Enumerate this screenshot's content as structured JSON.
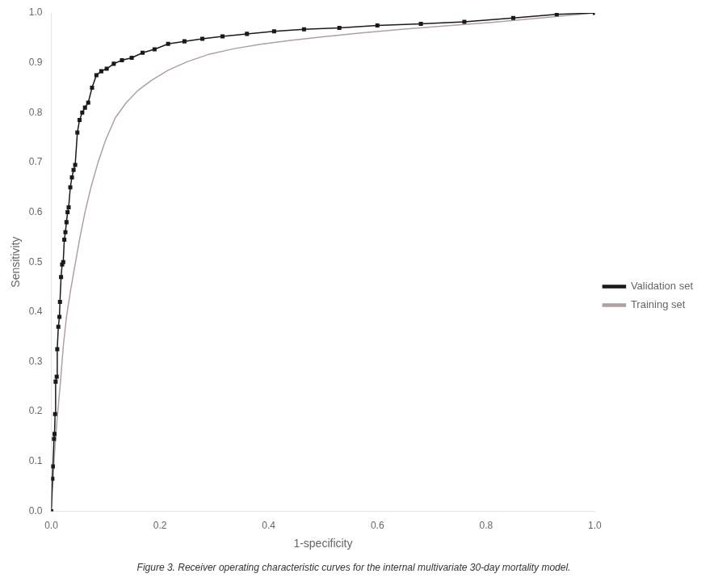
{
  "chart_data": {
    "type": "line",
    "xlabel": "1-specificity",
    "ylabel": "Sensitivity",
    "caption": "Figure 3. Receiver operating characteristic curves for the internal multivariate 30-day mortality model.",
    "xlim": [
      0.0,
      1.0
    ],
    "ylim": [
      0.0,
      1.0
    ],
    "xticks": [
      {
        "value": 0,
        "label": "0.0"
      },
      0.2,
      0.4,
      0.6,
      0.8,
      {
        "value": 1,
        "label": "1.0"
      }
    ],
    "yticks": [
      {
        "value": 0,
        "label": "0.0"
      },
      0.1,
      0.2,
      0.3,
      0.4,
      0.5,
      0.6,
      0.7,
      0.8,
      0.9,
      {
        "value": 1,
        "label": "1.0"
      }
    ],
    "grid": false,
    "legend": "right",
    "series": [
      {
        "name": "Validation set",
        "color": "#1a1a1a",
        "marker": "square",
        "line_style": "solid",
        "x": [
          0.0,
          0.002,
          0.003,
          0.005,
          0.006,
          0.007,
          0.008,
          0.01,
          0.011,
          0.013,
          0.015,
          0.016,
          0.018,
          0.02,
          0.022,
          0.024,
          0.026,
          0.028,
          0.03,
          0.032,
          0.035,
          0.038,
          0.041,
          0.044,
          0.048,
          0.052,
          0.057,
          0.062,
          0.068,
          0.075,
          0.083,
          0.092,
          0.102,
          0.115,
          0.13,
          0.148,
          0.168,
          0.19,
          0.215,
          0.245,
          0.278,
          0.315,
          0.36,
          0.41,
          0.465,
          0.53,
          0.6,
          0.68,
          0.76,
          0.85,
          0.93,
          1.0
        ],
        "values": [
          0.0,
          0.065,
          0.09,
          0.145,
          0.155,
          0.195,
          0.26,
          0.27,
          0.325,
          0.37,
          0.39,
          0.42,
          0.47,
          0.495,
          0.5,
          0.545,
          0.56,
          0.58,
          0.6,
          0.61,
          0.65,
          0.67,
          0.685,
          0.695,
          0.76,
          0.785,
          0.8,
          0.81,
          0.82,
          0.85,
          0.875,
          0.883,
          0.888,
          0.898,
          0.905,
          0.91,
          0.92,
          0.927,
          0.938,
          0.943,
          0.948,
          0.953,
          0.958,
          0.963,
          0.967,
          0.97,
          0.975,
          0.978,
          0.982,
          0.99,
          0.997,
          1.0
        ]
      },
      {
        "name": "Training set",
        "color": "#b0a0a0",
        "marker": "none",
        "line_style": "solid",
        "x": [
          0.0,
          0.004,
          0.008,
          0.012,
          0.017,
          0.022,
          0.028,
          0.035,
          0.043,
          0.052,
          0.062,
          0.073,
          0.086,
          0.1,
          0.118,
          0.138,
          0.16,
          0.185,
          0.215,
          0.25,
          0.29,
          0.335,
          0.385,
          0.44,
          0.5,
          0.57,
          0.645,
          0.725,
          0.81,
          0.9,
          1.0
        ],
        "values": [
          0.0,
          0.08,
          0.15,
          0.2,
          0.26,
          0.33,
          0.39,
          0.44,
          0.49,
          0.545,
          0.6,
          0.65,
          0.7,
          0.745,
          0.79,
          0.82,
          0.845,
          0.865,
          0.885,
          0.902,
          0.917,
          0.928,
          0.937,
          0.945,
          0.952,
          0.96,
          0.967,
          0.974,
          0.981,
          0.99,
          1.0
        ]
      }
    ]
  }
}
